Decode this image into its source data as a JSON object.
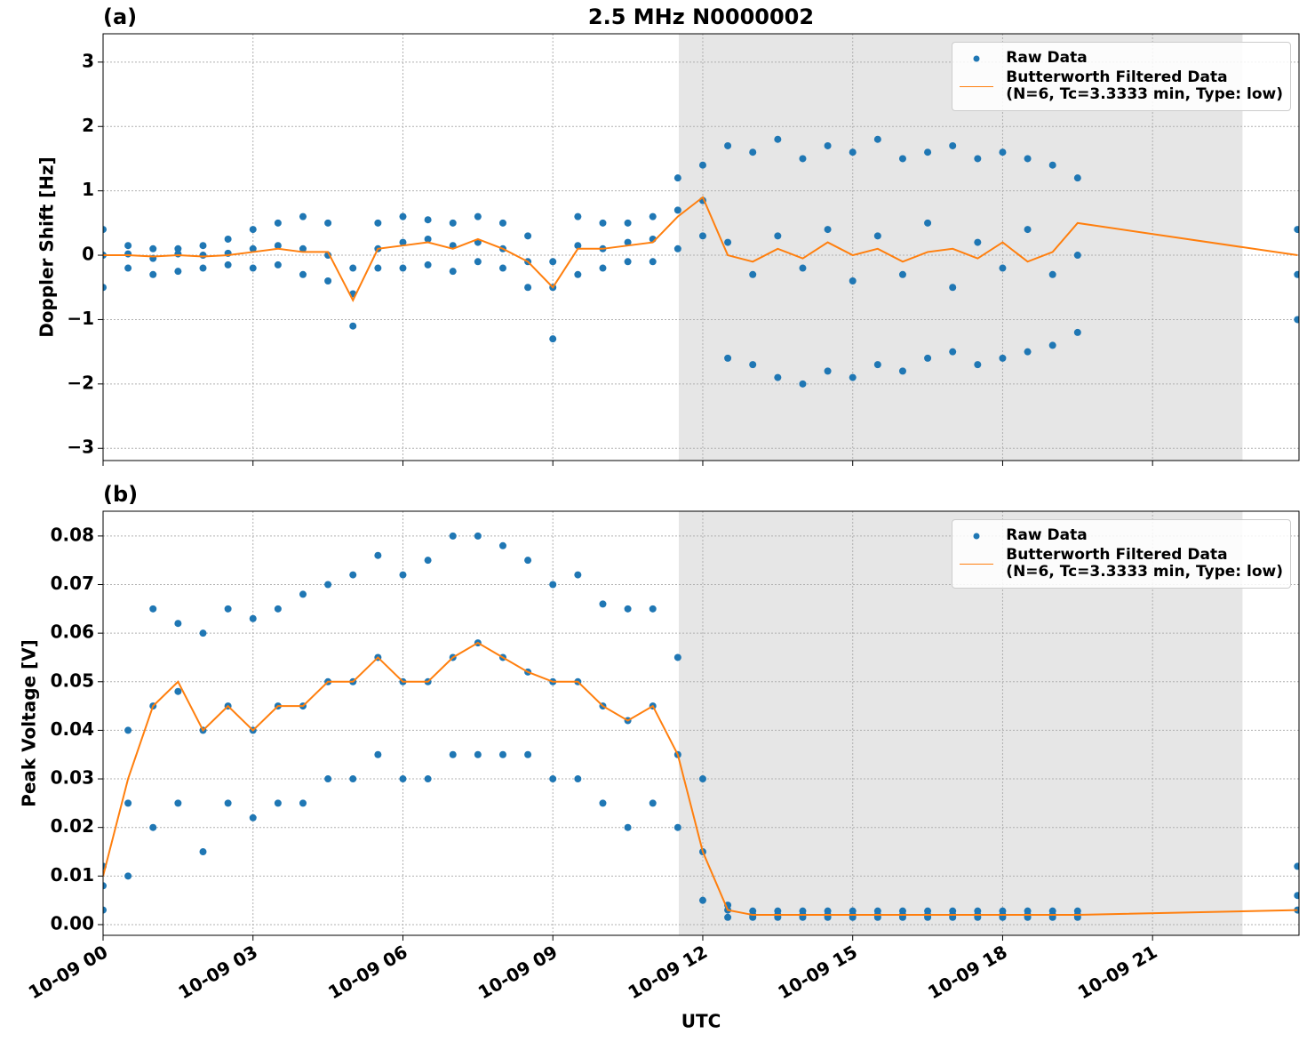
{
  "chart_data": [
    {
      "type": "scatter-line",
      "title": "2.5 MHz N0000002",
      "panel_label": "(a)",
      "ylabel": "Doppler Shift [Hz]",
      "xlim": [
        0,
        23.93
      ],
      "xticks": [
        0,
        3,
        6,
        9,
        12,
        15,
        18,
        21
      ],
      "ylim": [
        -3.19,
        3.44
      ],
      "yticks": [
        {
          "value": -3,
          "label": "−3"
        },
        {
          "value": -2,
          "label": "−2"
        },
        {
          "value": -1,
          "label": "−1"
        },
        0,
        1,
        2,
        3
      ],
      "grid": true,
      "legend": "upper right",
      "shaded_span": [
        11.52,
        22.8
      ],
      "series": [
        {
          "name": "Raw Data",
          "color": "#1f77b4",
          "mode": "markers",
          "x": [
            0,
            0,
            0,
            0.5,
            0.5,
            0.5,
            1,
            1,
            1,
            1.5,
            1.5,
            1.5,
            2,
            2,
            2,
            2.5,
            2.5,
            2.5,
            3,
            3,
            3,
            3.5,
            3.5,
            3.5,
            4,
            4,
            4,
            4.5,
            4.5,
            4.5,
            5,
            5,
            5,
            5.5,
            5.5,
            5.5,
            6,
            6,
            6,
            6.5,
            6.5,
            6.5,
            7,
            7,
            7,
            7.5,
            7.5,
            7.5,
            8,
            8,
            8,
            8.5,
            8.5,
            8.5,
            9,
            9,
            9,
            9.5,
            9.5,
            9.5,
            10,
            10,
            10,
            10.5,
            10.5,
            10.5,
            11,
            11,
            11,
            11.5,
            11.5,
            11.5,
            12,
            12,
            12,
            12.5,
            12.5,
            12.5,
            13,
            13,
            13,
            13.5,
            13.5,
            13.5,
            14,
            14,
            14,
            14.5,
            14.5,
            14.5,
            15,
            15,
            15,
            15.5,
            15.5,
            15.5,
            16,
            16,
            16,
            16.5,
            16.5,
            16.5,
            17,
            17,
            17,
            17.5,
            17.5,
            17.5,
            18,
            18,
            18,
            18.5,
            18.5,
            18.5,
            19,
            19,
            19,
            19.5,
            19.5,
            19.5,
            23.9,
            23.9,
            23.9
          ],
          "values": [
            0.4,
            0,
            -0.5,
            0.15,
            0.02,
            -0.2,
            0.1,
            -0.05,
            -0.3,
            0.1,
            0.02,
            -0.25,
            0.15,
            0,
            -0.2,
            0.25,
            0.03,
            -0.15,
            0.4,
            0.1,
            -0.2,
            0.5,
            0.15,
            -0.15,
            0.6,
            0.1,
            -0.3,
            0.5,
            0,
            -0.4,
            -0.2,
            -0.6,
            -1.1,
            0.5,
            0.1,
            -0.2,
            0.6,
            0.2,
            -0.2,
            0.55,
            0.25,
            -0.15,
            0.5,
            0.15,
            -0.25,
            0.6,
            0.2,
            -0.1,
            0.5,
            0.1,
            -0.2,
            0.3,
            -0.1,
            -0.5,
            -0.1,
            -0.5,
            -1.3,
            0.6,
            0.15,
            -0.3,
            0.5,
            0.1,
            -0.2,
            0.5,
            0.2,
            -0.1,
            0.6,
            0.25,
            -0.1,
            1.2,
            0.7,
            0.1,
            1.4,
            0.85,
            0.3,
            1.7,
            0.2,
            -1.6,
            1.6,
            -0.3,
            -1.7,
            1.8,
            0.3,
            -1.9,
            1.5,
            -0.2,
            -2.0,
            1.7,
            0.4,
            -1.8,
            1.6,
            -0.4,
            -1.9,
            1.8,
            0.3,
            -1.7,
            1.5,
            -0.3,
            -1.8,
            1.6,
            0.5,
            -1.6,
            1.7,
            -0.5,
            -1.5,
            1.5,
            0.2,
            -1.7,
            1.6,
            -0.2,
            -1.6,
            1.5,
            0.4,
            -1.5,
            1.4,
            -0.3,
            -1.4,
            1.2,
            0,
            -1.2,
            0.4,
            -0.3,
            -1.0
          ]
        },
        {
          "name": "Butterworth Filtered Data\n(N=6, Tc=3.3333 min, Type: low)",
          "color": "#ff7f0e",
          "mode": "lines",
          "x": [
            0,
            0.5,
            1,
            1.5,
            2,
            2.5,
            3,
            3.5,
            4,
            4.5,
            5,
            5.5,
            6,
            6.5,
            7,
            7.5,
            8,
            8.5,
            9,
            9.5,
            10,
            10.5,
            11,
            11.5,
            12,
            12.5,
            13,
            13.5,
            14,
            14.5,
            15,
            15.5,
            16,
            16.5,
            17,
            17.5,
            18,
            18.5,
            19,
            19.5,
            23.9
          ],
          "values": [
            0,
            0,
            -0.02,
            0,
            -0.02,
            0,
            0.05,
            0.1,
            0.05,
            0.05,
            -0.7,
            0.1,
            0.15,
            0.2,
            0.1,
            0.25,
            0.1,
            -0.1,
            -0.5,
            0.1,
            0.1,
            0.15,
            0.2,
            0.6,
            0.9,
            0,
            -0.1,
            0.1,
            -0.05,
            0.2,
            0,
            0.1,
            -0.1,
            0.05,
            0.1,
            -0.05,
            0.2,
            -0.1,
            0.05,
            0.5,
            0
          ]
        }
      ]
    },
    {
      "type": "scatter-line",
      "panel_label": "(b)",
      "ylabel": "Peak Voltage [V]",
      "xlabel": "UTC",
      "xlim": [
        0,
        23.93
      ],
      "xticks": [
        {
          "value": 0,
          "label": "10-09 00"
        },
        {
          "value": 3,
          "label": "10-09 03"
        },
        {
          "value": 6,
          "label": "10-09 06"
        },
        {
          "value": 9,
          "label": "10-09 09"
        },
        {
          "value": 12,
          "label": "10-09 12"
        },
        {
          "value": 15,
          "label": "10-09 15"
        },
        {
          "value": 18,
          "label": "10-09 18"
        },
        {
          "value": 21,
          "label": "10-09 21"
        }
      ],
      "ylim": [
        -0.0022,
        0.0851
      ],
      "yticks": [
        {
          "value": 0,
          "label": "0.00"
        },
        0.01,
        0.02,
        0.03,
        0.04,
        0.05,
        0.06,
        0.07,
        0.08
      ],
      "grid": true,
      "legend": "upper right",
      "shaded_span": [
        11.52,
        22.8
      ],
      "series": [
        {
          "name": "Raw Data",
          "color": "#1f77b4",
          "mode": "markers",
          "x": [
            0,
            0,
            0,
            0.5,
            0.5,
            0.5,
            1,
            1,
            1,
            1.5,
            1.5,
            1.5,
            2,
            2,
            2,
            2.5,
            2.5,
            2.5,
            3,
            3,
            3,
            3.5,
            3.5,
            3.5,
            4,
            4,
            4,
            4.5,
            4.5,
            4.5,
            5,
            5,
            5,
            5.5,
            5.5,
            5.5,
            6,
            6,
            6,
            6.5,
            6.5,
            6.5,
            7,
            7,
            7,
            7.5,
            7.5,
            7.5,
            8,
            8,
            8,
            8.5,
            8.5,
            8.5,
            9,
            9,
            9,
            9.5,
            9.5,
            9.5,
            10,
            10,
            10,
            10.5,
            10.5,
            10.5,
            11,
            11,
            11,
            11.5,
            11.5,
            11.5,
            12,
            12,
            12,
            12.5,
            12.5,
            12.5,
            13,
            13,
            13,
            13.5,
            13.5,
            13.5,
            14,
            14,
            14,
            14.5,
            14.5,
            14.5,
            15,
            15,
            15,
            15.5,
            15.5,
            15.5,
            16,
            16,
            16,
            16.5,
            16.5,
            16.5,
            17,
            17,
            17,
            17.5,
            17.5,
            17.5,
            18,
            18,
            18,
            18.5,
            18.5,
            18.5,
            19,
            19,
            19,
            19.5,
            19.5,
            19.5,
            23.9,
            23.9,
            23.9
          ],
          "values": [
            0.012,
            0.008,
            0.003,
            0.04,
            0.025,
            0.01,
            0.065,
            0.045,
            0.02,
            0.062,
            0.048,
            0.025,
            0.06,
            0.04,
            0.015,
            0.065,
            0.045,
            0.025,
            0.063,
            0.04,
            0.022,
            0.065,
            0.045,
            0.025,
            0.068,
            0.045,
            0.025,
            0.07,
            0.05,
            0.03,
            0.072,
            0.05,
            0.03,
            0.076,
            0.055,
            0.035,
            0.072,
            0.05,
            0.03,
            0.075,
            0.05,
            0.03,
            0.08,
            0.055,
            0.035,
            0.08,
            0.058,
            0.035,
            0.078,
            0.055,
            0.035,
            0.075,
            0.052,
            0.035,
            0.07,
            0.05,
            0.03,
            0.072,
            0.05,
            0.03,
            0.066,
            0.045,
            0.025,
            0.065,
            0.042,
            0.02,
            0.065,
            0.045,
            0.025,
            0.055,
            0.035,
            0.02,
            0.03,
            0.015,
            0.005,
            0.004,
            0.003,
            0.0015,
            0.0028,
            0.002,
            0.0015,
            0.0028,
            0.002,
            0.0015,
            0.0028,
            0.002,
            0.0015,
            0.0028,
            0.002,
            0.0015,
            0.0028,
            0.002,
            0.0015,
            0.0028,
            0.002,
            0.0015,
            0.0028,
            0.002,
            0.0015,
            0.0028,
            0.002,
            0.0015,
            0.0028,
            0.002,
            0.0015,
            0.0028,
            0.002,
            0.0015,
            0.0028,
            0.002,
            0.0015,
            0.0028,
            0.002,
            0.0015,
            0.0028,
            0.002,
            0.0015,
            0.0028,
            0.002,
            0.0015,
            0.012,
            0.006,
            0.003
          ]
        },
        {
          "name": "Butterworth Filtered Data\n(N=6, Tc=3.3333 min, Type: low)",
          "color": "#ff7f0e",
          "mode": "lines",
          "x": [
            0,
            0.5,
            1,
            1.5,
            2,
            2.5,
            3,
            3.5,
            4,
            4.5,
            5,
            5.5,
            6,
            6.5,
            7,
            7.5,
            8,
            8.5,
            9,
            9.5,
            10,
            10.5,
            11,
            11.5,
            12,
            12.5,
            13,
            13.5,
            14,
            14.5,
            15,
            15.5,
            16,
            16.5,
            17,
            17.5,
            18,
            18.5,
            19,
            19.5,
            23.9
          ],
          "values": [
            0.01,
            0.03,
            0.045,
            0.05,
            0.04,
            0.045,
            0.04,
            0.045,
            0.045,
            0.05,
            0.05,
            0.055,
            0.05,
            0.05,
            0.055,
            0.058,
            0.055,
            0.052,
            0.05,
            0.05,
            0.045,
            0.042,
            0.045,
            0.035,
            0.015,
            0.003,
            0.002,
            0.002,
            0.002,
            0.002,
            0.002,
            0.002,
            0.002,
            0.002,
            0.002,
            0.002,
            0.002,
            0.002,
            0.002,
            0.002,
            0.003
          ]
        }
      ]
    }
  ]
}
